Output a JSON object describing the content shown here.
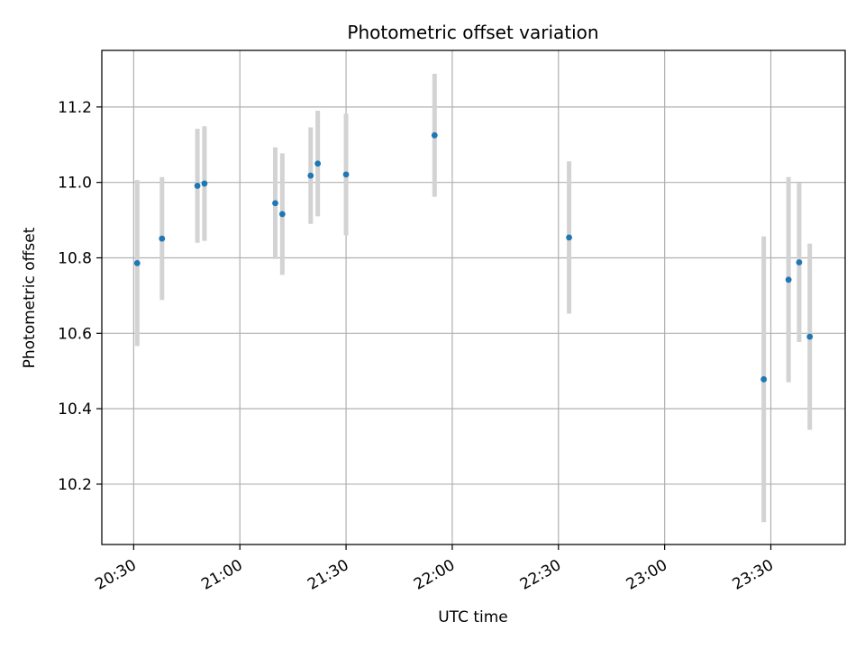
{
  "chart_data": {
    "type": "scatter",
    "title": "Photometric offset variation",
    "xlabel": "UTC time",
    "ylabel": "Photometric offset",
    "x_is_time": true,
    "xlim": [
      "20:21",
      "23:51"
    ],
    "ylim": [
      10.04,
      11.35
    ],
    "x_ticks": [
      "20:30",
      "21:00",
      "21:30",
      "22:00",
      "22:30",
      "23:00",
      "23:30"
    ],
    "y_ticks": [
      10.2,
      10.4,
      10.6,
      10.8,
      11.0,
      11.2
    ],
    "y_tick_labels": [
      "10.2",
      "10.4",
      "10.6",
      "10.8",
      "11.0",
      "11.2"
    ],
    "grid": true,
    "point_color": "#1f77b4",
    "errorbar_color": "#d3d3d3",
    "points": [
      {
        "time": "20:31",
        "y": 10.786,
        "err": 0.22
      },
      {
        "time": "20:38",
        "y": 10.851,
        "err": 0.163
      },
      {
        "time": "20:48",
        "y": 10.991,
        "err": 0.151
      },
      {
        "time": "20:50",
        "y": 10.997,
        "err": 0.152
      },
      {
        "time": "21:10",
        "y": 10.945,
        "err": 0.148
      },
      {
        "time": "21:12",
        "y": 10.916,
        "err": 0.161
      },
      {
        "time": "21:20",
        "y": 11.018,
        "err": 0.128
      },
      {
        "time": "21:22",
        "y": 11.05,
        "err": 0.14
      },
      {
        "time": "21:30",
        "y": 11.021,
        "err": 0.161
      },
      {
        "time": "21:55",
        "y": 11.125,
        "err": 0.163
      },
      {
        "time": "22:33",
        "y": 10.854,
        "err": 0.202
      },
      {
        "time": "23:28",
        "y": 10.478,
        "err": 0.379
      },
      {
        "time": "23:35",
        "y": 10.742,
        "err": 0.272
      },
      {
        "time": "23:38",
        "y": 10.788,
        "err": 0.211
      },
      {
        "time": "23:41",
        "y": 10.591,
        "err": 0.247
      }
    ]
  }
}
